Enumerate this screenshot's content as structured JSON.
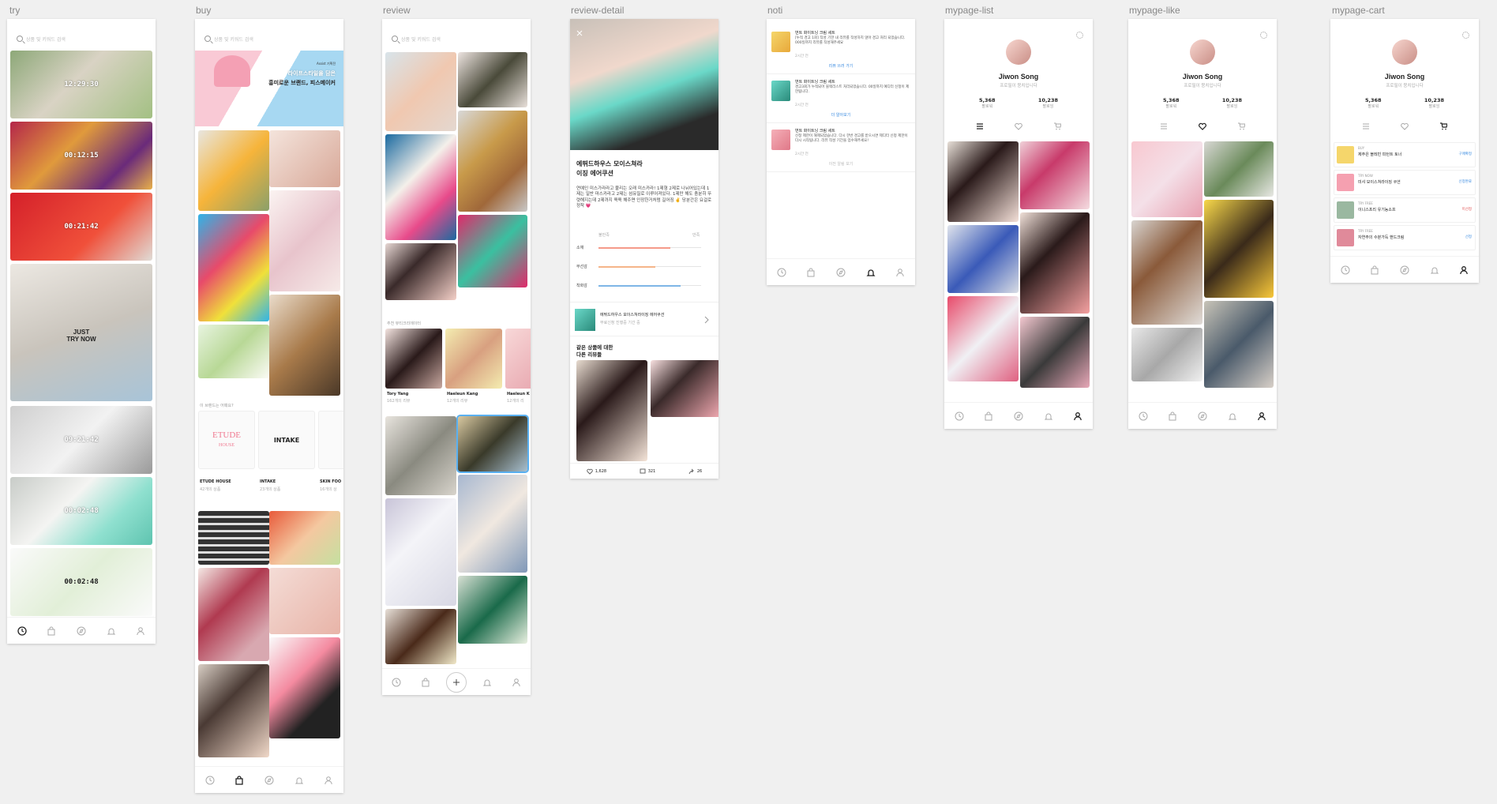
{
  "labels": {
    "try": "try",
    "buy": "buy",
    "review": "review",
    "review_detail": "review-detail",
    "noti": "noti",
    "mypage_list": "mypage-list",
    "mypage_like": "mypage-like",
    "mypage_cart": "mypage-cart"
  },
  "search_placeholder": "상품 및 키워드 검색",
  "try": {
    "timers": [
      "12:29:30",
      "00:12:15",
      "00:21:42",
      "",
      "09:21:42",
      "00:02:48",
      "00:02:48"
    ],
    "overlay_text": "JUST\nTRY NOW"
  },
  "buy": {
    "banner_top": "라이프스타일을 담은",
    "banner_title": "흥미로운 브랜드, 피스메이커",
    "banner_tag": "Assist 기획전",
    "section_title": "이 브랜드는 어때요?",
    "brands": [
      {
        "name": "ETUDE HOUSE",
        "count": "42개의 상품"
      },
      {
        "name": "INTAKE",
        "count": "23개의 상품"
      },
      {
        "name": "SKIN FOO",
        "count": "16개의 상"
      }
    ],
    "brand_logo_etude": "ETUDE",
    "brand_logo_etude_sub": "HOUSE",
    "brand_logo_intake": "INTAKE"
  },
  "review": {
    "section_title": "추천 뷰티크리에이터",
    "creators": [
      {
        "name": "Tory Yang",
        "count": "162개의 리뷰"
      },
      {
        "name": "Haeleun Kang",
        "count": "12개의 리뷰"
      },
      {
        "name": "Haeleun K",
        "count": "12개의 리"
      }
    ]
  },
  "review_detail": {
    "title_line1": "에뛰드하우스 모이스쳐라",
    "title_line2": "이징 에어쿠션",
    "body": "연예인 미스가라라고 불리는 오래 미스카라! 1제형 2제로 나뉘어있는데 1제는 일반 마스카라고 2제는 섬유질로 이루어져있다. 1제만 해도 충분히 뚜렷해지는데 2제까지 쭉쭉 해주면 인장한거처럼 길어짐 ✌️ 당분간은 요걸로 정착 💗",
    "rating_left": "불만족",
    "rating_right": "만족",
    "ratings": [
      {
        "label": "소재",
        "value": 0.7,
        "color": "#f59a8a"
      },
      {
        "label": "무선감",
        "value": 0.55,
        "color": "#f5b58a"
      },
      {
        "label": "착화감",
        "value": 0.8,
        "color": "#7fb6e6"
      }
    ],
    "product_name": "에뛰드하우스 모이스쳐라이징 에어쿠션",
    "product_meta": "무료신청 진행중 기간 중",
    "other_title_1": "같은 상품에 대한",
    "other_title_2": "다른 리뷰들",
    "likes": "1,628",
    "comments": "321",
    "shares": "26"
  },
  "noti": {
    "items": [
      {
        "title": "번트 화이트닝 크림 세트",
        "body": "[누적 경고 1회] 작성 기한 내 리뷰를 작성하지 않아 경고 처리 되었습니다. 000일까지 리뷰를 작성해주세요",
        "time": "2시간 전",
        "link": "리뷰 쓰러 가기"
      },
      {
        "title": "번트 화이트닝 크림 세트",
        "body": "경고3회가 누적되어 블랙리스트 처리되었습니다. 00일까지 예디터 신청이 제한됩니다.",
        "time": "2시간 전",
        "link": "더 알아보기"
      },
      {
        "title": "번트 화이트닝 크림 세트",
        "body": "신청 제한이 해제되었습니다. 다시 한번 경고를 받으시면 제디터 신청 제한이 다시 시작됩니다. 리뷰 작성 기간을 엄수해주세요!",
        "time": "2시간 전",
        "link": "이전 알림 보기"
      }
    ]
  },
  "profile": {
    "name": "Jiwon Song",
    "sub": "프로필이 뭉치입니다",
    "followers": "5,368",
    "followers_label": "팔로워",
    "following": "10,238",
    "following_label": "팔로잉"
  },
  "cart": {
    "items": [
      {
        "tag": "BUY",
        "name": "제주은 블레빈 피턴트 토너",
        "status": "구매확정",
        "status_color": "#3a8be0",
        "thumb": "#f5d66b"
      },
      {
        "tag": "TRY NOW",
        "name": "미샤 모이스쳐라이징 쿠션",
        "status": "신청완료",
        "status_color": "#3a8be0",
        "thumb": "#f5a0b0"
      },
      {
        "tag": "TRY FREE",
        "name": "이니스프리 유기농소프",
        "status": "미선정",
        "status_color": "#e05050",
        "thumb": "#9ab8a0"
      },
      {
        "tag": "TRY FREE",
        "name": "자연주의 수분가득 핸드크림",
        "status": "선정",
        "status_color": "#3a8be0",
        "thumb": "#e08a9a"
      }
    ]
  },
  "colors": {
    "accent": "#3a8be0",
    "pink": "#f4506e",
    "bg": "#f0f0f0"
  },
  "icons": [
    "clock-icon",
    "bag-icon",
    "compass-icon",
    "bell-icon",
    "person-icon",
    "plus-icon",
    "heart-icon",
    "list-icon",
    "cart-icon",
    "gear-icon",
    "search-icon",
    "close-icon",
    "chevron-right-icon",
    "comment-icon",
    "share-icon"
  ]
}
